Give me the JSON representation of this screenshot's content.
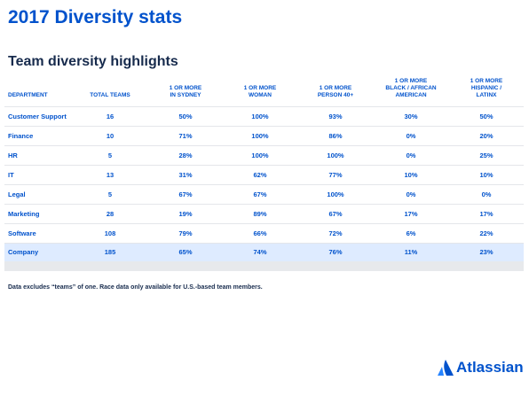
{
  "header": {
    "title": "2017 Diversity stats",
    "subtitle": "Team diversity highlights"
  },
  "table": {
    "columns": [
      [
        "DEPARTMENT"
      ],
      [
        "TOTAL TEAMS"
      ],
      [
        "1 OR MORE",
        "IN SYDNEY"
      ],
      [
        "1 OR MORE",
        "WOMAN"
      ],
      [
        "1 OR MORE",
        "PERSON 40+"
      ],
      [
        "1 OR MORE",
        "BLACK / AFRICAN",
        "AMERICAN"
      ],
      [
        "1 OR MORE",
        "HISPANIC /",
        "LATINX"
      ]
    ],
    "rows": [
      [
        "Customer Support",
        "16",
        "50%",
        "100%",
        "93%",
        "30%",
        "50%"
      ],
      [
        "Finance",
        "10",
        "71%",
        "100%",
        "86%",
        "0%",
        "20%"
      ],
      [
        "HR",
        "5",
        "28%",
        "100%",
        "100%",
        "0%",
        "25%"
      ],
      [
        "IT",
        "13",
        "31%",
        "62%",
        "77%",
        "10%",
        "10%"
      ],
      [
        "Legal",
        "5",
        "67%",
        "67%",
        "100%",
        "0%",
        "0%"
      ],
      [
        "Marketing",
        "28",
        "19%",
        "89%",
        "67%",
        "17%",
        "17%"
      ],
      [
        "Software",
        "108",
        "79%",
        "66%",
        "72%",
        "6%",
        "22%"
      ],
      [
        "Company",
        "185",
        "65%",
        "74%",
        "76%",
        "11%",
        "23%"
      ]
    ]
  },
  "footnote": "Data excludes “teams” of one. Race data only available for U.S.-based team members.",
  "logo": "Atlassian"
}
